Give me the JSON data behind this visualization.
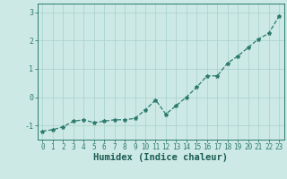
{
  "x": [
    0,
    1,
    2,
    3,
    4,
    5,
    6,
    7,
    8,
    9,
    10,
    11,
    12,
    13,
    14,
    15,
    16,
    17,
    18,
    19,
    20,
    21,
    22,
    23
  ],
  "y": [
    -1.2,
    -1.15,
    -1.05,
    -0.85,
    -0.8,
    -0.9,
    -0.85,
    -0.8,
    -0.8,
    -0.75,
    -0.45,
    -0.1,
    -0.6,
    -0.3,
    0.0,
    0.35,
    0.75,
    0.75,
    1.2,
    1.45,
    1.75,
    2.05,
    2.25,
    2.85
  ],
  "line_color": "#2d7b6e",
  "marker": "*",
  "marker_size": 3.0,
  "line_width": 0.9,
  "line_style": "--",
  "xlabel": "Humidex (Indice chaleur)",
  "xlim": [
    -0.5,
    23.5
  ],
  "ylim": [
    -1.5,
    3.3
  ],
  "yticks": [
    -1,
    0,
    1,
    2,
    3
  ],
  "xticks": [
    0,
    1,
    2,
    3,
    4,
    5,
    6,
    7,
    8,
    9,
    10,
    11,
    12,
    13,
    14,
    15,
    16,
    17,
    18,
    19,
    20,
    21,
    22,
    23
  ],
  "bg_color": "#cce9e5",
  "grid_color": "#aed4cf",
  "tick_color": "#2d7b6e",
  "label_color": "#1a5c52",
  "tick_fontsize": 5.5,
  "xlabel_fontsize": 7.5
}
